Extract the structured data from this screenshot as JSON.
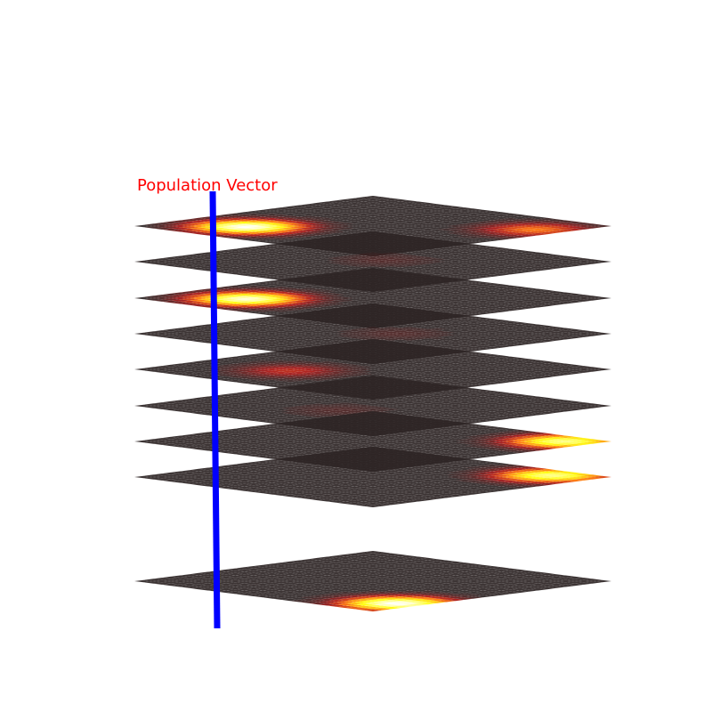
{
  "chart_data": {
    "type": "heatmap",
    "subtype": "stacked-3d-surface-layers",
    "layer_count": 9,
    "colormap": "hot",
    "layer_base_color": "#2c2424",
    "annotation": {
      "text": "Population Vector",
      "color": "#ff0000"
    },
    "population_vector_color": "#0000ff",
    "layers": [
      {
        "id": "layer-1",
        "peaks": [
          {
            "u": 0.22,
            "v": 0.25,
            "amplitude": 1.0
          },
          {
            "u": 0.78,
            "v": 0.9,
            "amplitude": 0.45
          }
        ]
      },
      {
        "id": "layer-2",
        "peaks": [
          {
            "u": 0.55,
            "v": 0.5,
            "amplitude": 0.1
          }
        ]
      },
      {
        "id": "layer-3",
        "peaks": [
          {
            "u": 0.22,
            "v": 0.25,
            "amplitude": 0.95
          }
        ]
      },
      {
        "id": "layer-4",
        "peaks": [
          {
            "u": 0.55,
            "v": 0.55,
            "amplitude": 0.1
          }
        ]
      },
      {
        "id": "layer-5",
        "peaks": [
          {
            "u": 0.3,
            "v": 0.35,
            "amplitude": 0.3
          }
        ]
      },
      {
        "id": "layer-6",
        "peaks": [
          {
            "u": 0.35,
            "v": 0.5,
            "amplitude": 0.1
          }
        ]
      },
      {
        "id": "layer-7",
        "peaks": [
          {
            "u": 0.9,
            "v": 0.9,
            "amplitude": 0.85
          }
        ]
      },
      {
        "id": "layer-8",
        "peaks": [
          {
            "u": 0.9,
            "v": 0.85,
            "amplitude": 0.85
          }
        ]
      },
      {
        "id": "layer-9",
        "peaks": [
          {
            "u": 0.18,
            "v": 0.92,
            "amplitude": 1.0
          }
        ]
      }
    ]
  }
}
